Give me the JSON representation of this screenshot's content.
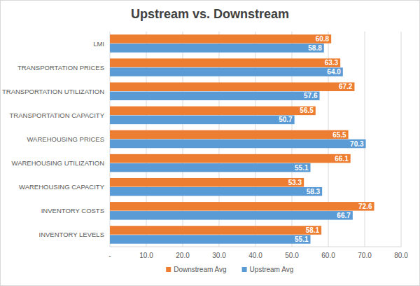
{
  "chart_data": {
    "type": "bar",
    "orientation": "horizontal",
    "title": "Upstream vs. Downstream",
    "categories": [
      "LMI",
      "TRANSPORTATION PRICES",
      "TRANSPORTATION UTILIZATION",
      "TRANSPORTATION CAPACITY",
      "WAREHOUSING PRICES",
      "WAREHOUSING UTILIZATION",
      "WAREHOUSING CAPACITY",
      "INVENTORY COSTS",
      "INVENTORY LEVELS"
    ],
    "series": [
      {
        "name": "Downstream Avg",
        "color": "#ed7d31",
        "values": [
          60.8,
          63.3,
          67.2,
          56.5,
          65.5,
          66.1,
          53.3,
          72.6,
          58.1
        ],
        "value_labels": [
          "60.8",
          "63.3",
          "67.2",
          "56.5",
          "65.5",
          "66.1",
          "53.3",
          "72.6",
          "58.1"
        ]
      },
      {
        "name": "Upstream Avg",
        "color": "#5b9bd5",
        "values": [
          58.8,
          64.0,
          57.6,
          50.7,
          70.3,
          55.1,
          58.3,
          66.7,
          55.1
        ],
        "value_labels": [
          "58.8",
          "64.0",
          "57.6",
          "50.7",
          "70.3",
          "55.1",
          "58.3",
          "66.7",
          "55.1"
        ]
      }
    ],
    "xlim": [
      0,
      80
    ],
    "xticks": [
      {
        "value": 0,
        "label": "-"
      },
      {
        "value": 10,
        "label": "10.0"
      },
      {
        "value": 20,
        "label": "20.0"
      },
      {
        "value": 30,
        "label": "30.0"
      },
      {
        "value": 40,
        "label": "40.0"
      },
      {
        "value": 50,
        "label": "50.0"
      },
      {
        "value": 60,
        "label": "60.0"
      },
      {
        "value": 70,
        "label": "70.0"
      },
      {
        "value": 80,
        "label": "80.0"
      }
    ],
    "grid": true,
    "data_labels": true,
    "legend": "bottom"
  }
}
